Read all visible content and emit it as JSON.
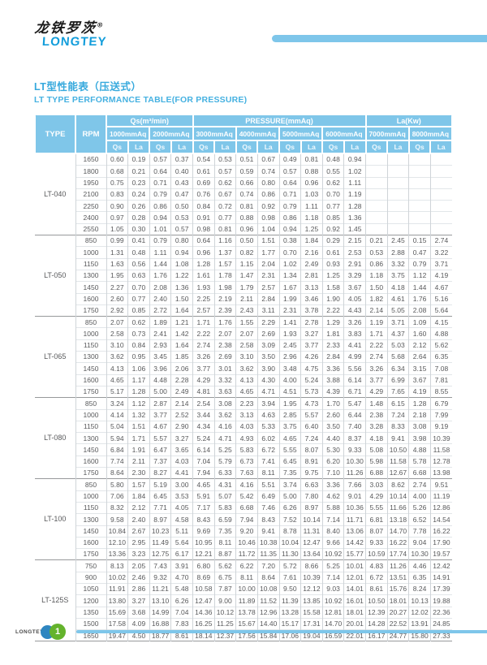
{
  "logo": {
    "chinese": "龙铁罗茨",
    "registered": "®",
    "latin": "LONGTEY"
  },
  "title": {
    "zh": "LT型性能表（压送式）",
    "en": "LT TYPE PERFORMANCE TABLE(FOR PRESSURE)"
  },
  "colors": {
    "accent_blue": "#36a9dd",
    "header_blue": "#7fc6e9",
    "bar_blue": "#7ec6ea",
    "logo_blue": "#129ddb",
    "footer_circle_blue": "#2e86c0",
    "footer_circle_green": "#64b32c",
    "text_gray": "#58595b"
  },
  "table": {
    "col_type": "TYPE",
    "col_rpm": "RPM",
    "banner_qs": "Qs(m³/min)",
    "banner_pressure": "PRESSURE(mmAq)",
    "banner_la": "La(Kw)",
    "pressure_cols": [
      "1000mmAq",
      "2000mmAq",
      "3000mmAq",
      "4000mmAq",
      "5000mmAq",
      "6000mmAq",
      "7000mmAq",
      "8000mmAq"
    ],
    "sub_qs": "Qs",
    "sub_la": "La",
    "groups": [
      {
        "type": "LT-040",
        "rows": [
          {
            "rpm": "1650",
            "v": [
              "0.60",
              "0.19",
              "0.57",
              "0.37",
              "0.54",
              "0.53",
              "0.51",
              "0.67",
              "0.49",
              "0.81",
              "0.48",
              "0.94",
              "",
              "",
              "",
              ""
            ]
          },
          {
            "rpm": "1800",
            "v": [
              "0.68",
              "0.21",
              "0.64",
              "0.40",
              "0.61",
              "0.57",
              "0.59",
              "0.74",
              "0.57",
              "0.88",
              "0.55",
              "1.02",
              "",
              "",
              "",
              ""
            ]
          },
          {
            "rpm": "1950",
            "v": [
              "0.75",
              "0.23",
              "0.71",
              "0.43",
              "0.69",
              "0.62",
              "0.66",
              "0.80",
              "0.64",
              "0.96",
              "0.62",
              "1.11",
              "",
              "",
              "",
              ""
            ]
          },
          {
            "rpm": "2100",
            "v": [
              "0.83",
              "0.24",
              "0.79",
              "0.47",
              "0.76",
              "0.67",
              "0.74",
              "0.86",
              "0.71",
              "1.03",
              "0.70",
              "1.19",
              "",
              "",
              "",
              ""
            ]
          },
          {
            "rpm": "2250",
            "v": [
              "0.90",
              "0.26",
              "0.86",
              "0.50",
              "0.84",
              "0.72",
              "0.81",
              "0.92",
              "0.79",
              "1.11",
              "0.77",
              "1.28",
              "",
              "",
              "",
              ""
            ]
          },
          {
            "rpm": "2400",
            "v": [
              "0.97",
              "0.28",
              "0.94",
              "0.53",
              "0.91",
              "0.77",
              "0.88",
              "0.98",
              "0.86",
              "1.18",
              "0.85",
              "1.36",
              "",
              "",
              "",
              ""
            ]
          },
          {
            "rpm": "2550",
            "v": [
              "1.05",
              "0.30",
              "1.01",
              "0.57",
              "0.98",
              "0.81",
              "0.96",
              "1.04",
              "0.94",
              "1.25",
              "0.92",
              "1.45",
              "",
              "",
              "",
              ""
            ]
          }
        ]
      },
      {
        "type": "LT-050",
        "rows": [
          {
            "rpm": "850",
            "v": [
              "0.99",
              "0.41",
              "0.79",
              "0.80",
              "0.64",
              "1.16",
              "0.50",
              "1.51",
              "0.38",
              "1.84",
              "0.29",
              "2.15",
              "0.21",
              "2.45",
              "0.15",
              "2.74"
            ]
          },
          {
            "rpm": "1000",
            "v": [
              "1.31",
              "0.48",
              "1.11",
              "0.94",
              "0.96",
              "1.37",
              "0.82",
              "1.77",
              "0.70",
              "2.16",
              "0.61",
              "2.53",
              "0.53",
              "2.88",
              "0.47",
              "3.22"
            ]
          },
          {
            "rpm": "1150",
            "v": [
              "1.63",
              "0.56",
              "1.44",
              "1.08",
              "1.28",
              "1.57",
              "1.15",
              "2.04",
              "1.02",
              "2.49",
              "0.93",
              "2.91",
              "0.86",
              "3.32",
              "0.79",
              "3.71"
            ]
          },
          {
            "rpm": "1300",
            "v": [
              "1.95",
              "0.63",
              "1.76",
              "1.22",
              "1.61",
              "1.78",
              "1.47",
              "2.31",
              "1.34",
              "2.81",
              "1.25",
              "3.29",
              "1.18",
              "3.75",
              "1.12",
              "4.19"
            ]
          },
          {
            "rpm": "1450",
            "v": [
              "2.27",
              "0.70",
              "2.08",
              "1.36",
              "1.93",
              "1.98",
              "1.79",
              "2.57",
              "1.67",
              "3.13",
              "1.58",
              "3.67",
              "1.50",
              "4.18",
              "1.44",
              "4.67"
            ]
          },
          {
            "rpm": "1600",
            "v": [
              "2.60",
              "0.77",
              "2.40",
              "1.50",
              "2.25",
              "2.19",
              "2.11",
              "2.84",
              "1.99",
              "3.46",
              "1.90",
              "4.05",
              "1.82",
              "4.61",
              "1.76",
              "5.16"
            ]
          },
          {
            "rpm": "1750",
            "v": [
              "2.92",
              "0.85",
              "2.72",
              "1.64",
              "2.57",
              "2.39",
              "2.43",
              "3.11",
              "2.31",
              "3.78",
              "2.22",
              "4.43",
              "2.14",
              "5.05",
              "2.08",
              "5.64"
            ]
          }
        ]
      },
      {
        "type": "LT-065",
        "rows": [
          {
            "rpm": "850",
            "v": [
              "2.07",
              "0.62",
              "1.89",
              "1.21",
              "1.71",
              "1.76",
              "1.55",
              "2.29",
              "1.41",
              "2.78",
              "1.29",
              "3.26",
              "1.19",
              "3.71",
              "1.09",
              "4.15"
            ]
          },
          {
            "rpm": "1000",
            "v": [
              "2.58",
              "0.73",
              "2.41",
              "1.42",
              "2.22",
              "2.07",
              "2.07",
              "2.69",
              "1.93",
              "3.27",
              "1.81",
              "3.83",
              "1.71",
              "4.37",
              "1.60",
              "4.88"
            ]
          },
          {
            "rpm": "1150",
            "v": [
              "3.10",
              "0.84",
              "2.93",
              "1.64",
              "2.74",
              "2.38",
              "2.58",
              "3.09",
              "2.45",
              "3.77",
              "2.33",
              "4.41",
              "2.22",
              "5.03",
              "2.12",
              "5.62"
            ]
          },
          {
            "rpm": "1300",
            "v": [
              "3.62",
              "0.95",
              "3.45",
              "1.85",
              "3.26",
              "2.69",
              "3.10",
              "3.50",
              "2.96",
              "4.26",
              "2.84",
              "4.99",
              "2.74",
              "5.68",
              "2.64",
              "6.35"
            ]
          },
          {
            "rpm": "1450",
            "v": [
              "4.13",
              "1.06",
              "3.96",
              "2.06",
              "3.77",
              "3.01",
              "3.62",
              "3.90",
              "3.48",
              "4.75",
              "3.36",
              "5.56",
              "3.26",
              "6.34",
              "3.15",
              "7.08"
            ]
          },
          {
            "rpm": "1600",
            "v": [
              "4.65",
              "1.17",
              "4.48",
              "2.28",
              "4.29",
              "3.32",
              "4.13",
              "4.30",
              "4.00",
              "5.24",
              "3.88",
              "6.14",
              "3.77",
              "6.99",
              "3.67",
              "7.81"
            ]
          },
          {
            "rpm": "1750",
            "v": [
              "5.17",
              "1.28",
              "5.00",
              "2.49",
              "4.81",
              "3.63",
              "4.65",
              "4.71",
              "4.51",
              "5.73",
              "4.39",
              "6.71",
              "4.29",
              "7.65",
              "4.19",
              "8.55"
            ]
          }
        ]
      },
      {
        "type": "LT-080",
        "rows": [
          {
            "rpm": "850",
            "v": [
              "3.24",
              "1.12",
              "2.87",
              "2.14",
              "2.54",
              "3.08",
              "2.23",
              "3.94",
              "1.95",
              "4.73",
              "1.70",
              "5.47",
              "1.48",
              "6.15",
              "1.28",
              "6.79"
            ]
          },
          {
            "rpm": "1000",
            "v": [
              "4.14",
              "1.32",
              "3.77",
              "2.52",
              "3.44",
              "3.62",
              "3.13",
              "4.63",
              "2.85",
              "5.57",
              "2.60",
              "6.44",
              "2.38",
              "7.24",
              "2.18",
              "7.99"
            ]
          },
          {
            "rpm": "1150",
            "v": [
              "5.04",
              "1.51",
              "4.67",
              "2.90",
              "4.34",
              "4.16",
              "4.03",
              "5.33",
              "3.75",
              "6.40",
              "3.50",
              "7.40",
              "3.28",
              "8.33",
              "3.08",
              "9.19"
            ]
          },
          {
            "rpm": "1300",
            "v": [
              "5.94",
              "1.71",
              "5.57",
              "3.27",
              "5.24",
              "4.71",
              "4.93",
              "6.02",
              "4.65",
              "7.24",
              "4.40",
              "8.37",
              "4.18",
              "9.41",
              "3.98",
              "10.39"
            ]
          },
          {
            "rpm": "1450",
            "v": [
              "6.84",
              "1.91",
              "6.47",
              "3.65",
              "6.14",
              "5.25",
              "5.83",
              "6.72",
              "5.55",
              "8.07",
              "5.30",
              "9.33",
              "5.08",
              "10.50",
              "4.88",
              "11.58"
            ]
          },
          {
            "rpm": "1600",
            "v": [
              "7.74",
              "2.11",
              "7.37",
              "4.03",
              "7.04",
              "5.79",
              "6.73",
              "7.41",
              "6.45",
              "8.91",
              "6.20",
              "10.30",
              "5.98",
              "11.58",
              "5.78",
              "12.78"
            ]
          },
          {
            "rpm": "1750",
            "v": [
              "8.64",
              "2.30",
              "8.27",
              "4.41",
              "7.94",
              "6.33",
              "7.63",
              "8.11",
              "7.35",
              "9.75",
              "7.10",
              "11.26",
              "6.88",
              "12.67",
              "6.68",
              "13.98"
            ]
          }
        ]
      },
      {
        "type": "LT-100",
        "rows": [
          {
            "rpm": "850",
            "v": [
              "5.80",
              "1.57",
              "5.19",
              "3.00",
              "4.65",
              "4.31",
              "4.16",
              "5.51",
              "3.74",
              "6.63",
              "3.36",
              "7.66",
              "3.03",
              "8.62",
              "2.74",
              "9.51"
            ]
          },
          {
            "rpm": "1000",
            "v": [
              "7.06",
              "1.84",
              "6.45",
              "3.53",
              "5.91",
              "5.07",
              "5.42",
              "6.49",
              "5.00",
              "7.80",
              "4.62",
              "9.01",
              "4.29",
              "10.14",
              "4.00",
              "11.19"
            ]
          },
          {
            "rpm": "1150",
            "v": [
              "8.32",
              "2.12",
              "7.71",
              "4.05",
              "7.17",
              "5.83",
              "6.68",
              "7.46",
              "6.26",
              "8.97",
              "5.88",
              "10.36",
              "5.55",
              "11.66",
              "5.26",
              "12.86"
            ]
          },
          {
            "rpm": "1300",
            "v": [
              "9.58",
              "2.40",
              "8.97",
              "4.58",
              "8.43",
              "6.59",
              "7.94",
              "8.43",
              "7.52",
              "10.14",
              "7.14",
              "11.71",
              "6.81",
              "13.18",
              "6.52",
              "14.54"
            ]
          },
          {
            "rpm": "1450",
            "v": [
              "10.84",
              "2.67",
              "10.23",
              "5.11",
              "9.69",
              "7.35",
              "9.20",
              "9.41",
              "8.78",
              "11.31",
              "8.40",
              "13.06",
              "8.07",
              "14.70",
              "7.78",
              "16.22"
            ]
          },
          {
            "rpm": "1600",
            "v": [
              "12.10",
              "2.95",
              "11.49",
              "5.64",
              "10.95",
              "8.11",
              "10.46",
              "10.38",
              "10.04",
              "12.47",
              "9.66",
              "14.42",
              "9.33",
              "16.22",
              "9.04",
              "17.90"
            ]
          },
          {
            "rpm": "1750",
            "v": [
              "13.36",
              "3.23",
              "12.75",
              "6.17",
              "12.21",
              "8.87",
              "11.72",
              "11.35",
              "11.30",
              "13.64",
              "10.92",
              "15.77",
              "10.59",
              "17.74",
              "10.30",
              "19.57"
            ]
          }
        ]
      },
      {
        "type": "LT-125S",
        "rows": [
          {
            "rpm": "750",
            "v": [
              "8.13",
              "2.05",
              "7.43",
              "3.91",
              "6.80",
              "5.62",
              "6.22",
              "7.20",
              "5.72",
              "8.66",
              "5.25",
              "10.01",
              "4.83",
              "11.26",
              "4.46",
              "12.42"
            ]
          },
          {
            "rpm": "900",
            "v": [
              "10.02",
              "2.46",
              "9.32",
              "4.70",
              "8.69",
              "6.75",
              "8.11",
              "8.64",
              "7.61",
              "10.39",
              "7.14",
              "12.01",
              "6.72",
              "13.51",
              "6.35",
              "14.91"
            ]
          },
          {
            "rpm": "1050",
            "v": [
              "11.91",
              "2.86",
              "11.21",
              "5.48",
              "10.58",
              "7.87",
              "10.00",
              "10.08",
              "9.50",
              "12.12",
              "9.03",
              "14.01",
              "8.61",
              "15.76",
              "8.24",
              "17.39"
            ]
          },
          {
            "rpm": "1200",
            "v": [
              "13.80",
              "3.27",
              "13.10",
              "6.26",
              "12.47",
              "9.00",
              "11.89",
              "11.52",
              "11.39",
              "13.85",
              "10.92",
              "16.01",
              "10.50",
              "18.01",
              "10.13",
              "19.88"
            ]
          },
          {
            "rpm": "1350",
            "v": [
              "15.69",
              "3.68",
              "14.99",
              "7.04",
              "14.36",
              "10.12",
              "13.78",
              "12.96",
              "13.28",
              "15.58",
              "12.81",
              "18.01",
              "12.39",
              "20.27",
              "12.02",
              "22.36"
            ]
          },
          {
            "rpm": "1500",
            "v": [
              "17.58",
              "4.09",
              "16.88",
              "7.83",
              "16.25",
              "11.25",
              "15.67",
              "14.40",
              "15.17",
              "17.31",
              "14.70",
              "20.01",
              "14.28",
              "22.52",
              "13.91",
              "24.85"
            ]
          },
          {
            "rpm": "1650",
            "v": [
              "19.47",
              "4.50",
              "18.77",
              "8.61",
              "18.14",
              "12.37",
              "17.56",
              "15.84",
              "17.06",
              "19.04",
              "16.59",
              "22.01",
              "16.17",
              "24.77",
              "15.80",
              "27.33"
            ]
          }
        ]
      }
    ]
  },
  "footer": {
    "brand": "LONGTEY",
    "page_number": "1"
  }
}
